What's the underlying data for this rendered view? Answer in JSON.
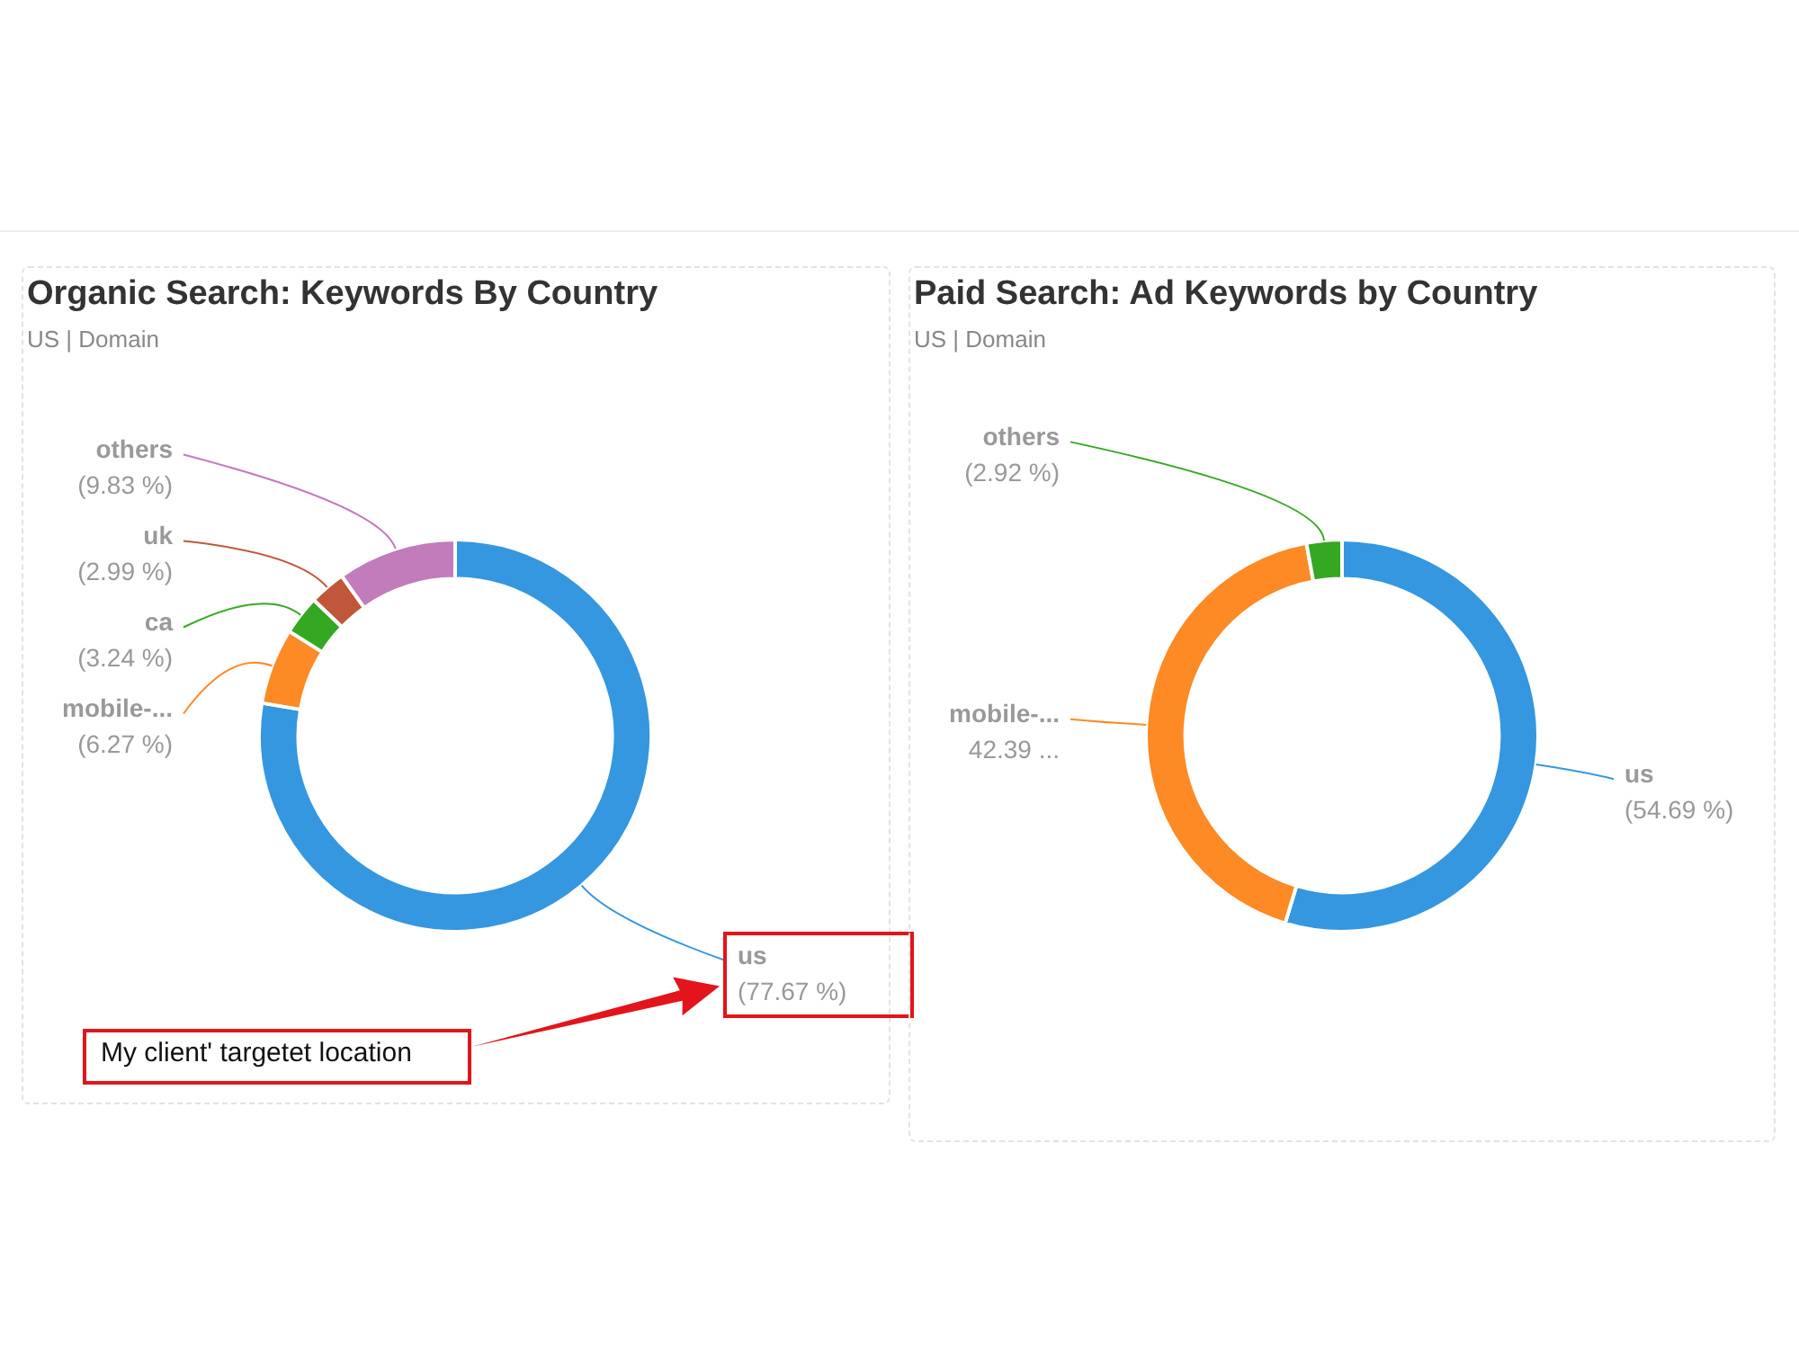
{
  "chart_data": [
    {
      "type": "donut",
      "title": "Organic Search: Keywords By Country",
      "subtitle": "US | Domain",
      "categories": [
        "us",
        "mobile-...",
        "ca",
        "uk",
        "others"
      ],
      "values": [
        77.67,
        6.27,
        3.24,
        2.99,
        9.83
      ],
      "value_labels": [
        "(77.67 %)",
        "(6.27 %)",
        "(3.24 %)",
        "(2.99 %)",
        "(9.83 %)"
      ],
      "colors": [
        "#3497e0",
        "#fd8a25",
        "#34a821",
        "#c0573a",
        "#c27bbb"
      ],
      "legend": false,
      "annotations": [
        "My client' targetet location"
      ]
    },
    {
      "type": "donut",
      "title": "Paid Search: Ad Keywords by Country",
      "subtitle": "US | Domain",
      "categories": [
        "us",
        "mobile-...",
        "others"
      ],
      "values": [
        54.69,
        42.39,
        2.92
      ],
      "value_labels": [
        "(54.69 %)",
        "42.39 ...",
        "(2.92 %)"
      ],
      "colors": [
        "#3497e0",
        "#fd8a25",
        "#34a821"
      ],
      "legend": false
    }
  ]
}
